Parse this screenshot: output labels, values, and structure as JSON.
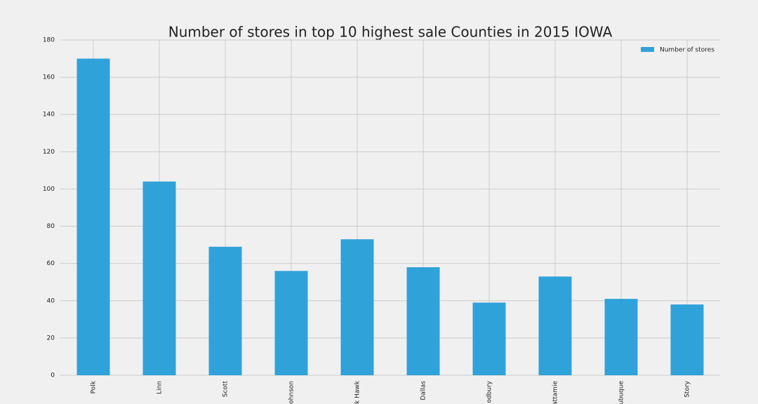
{
  "chart_data": {
    "type": "bar",
    "title": "Number of stores in top 10 highest sale Counties in 2015 IOWA",
    "categories": [
      "Polk",
      "Linn",
      "Scott",
      "ohnson",
      "k Hawk",
      "Dallas",
      "odbury",
      "attamie",
      "ubuque",
      "Story"
    ],
    "series": [
      {
        "name": "Number of stores",
        "color": "#30a2da",
        "values": [
          170,
          104,
          69,
          56,
          73,
          58,
          39,
          53,
          41,
          38
        ]
      }
    ],
    "ylim": [
      0,
      180
    ],
    "yticks": [
      0,
      20,
      40,
      60,
      80,
      100,
      120,
      140,
      160,
      180
    ],
    "grid": true,
    "legend": "upper right"
  }
}
